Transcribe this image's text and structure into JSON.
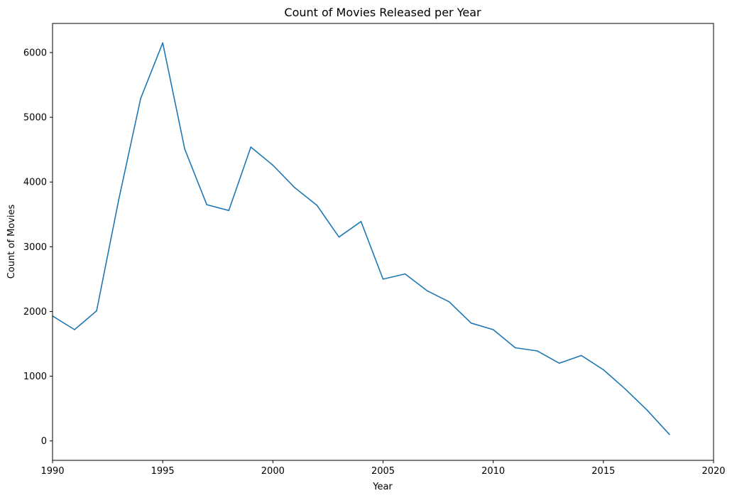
{
  "chart_data": {
    "type": "line",
    "title": "Count of Movies Released per Year",
    "xlabel": "Year",
    "ylabel": "Count of Movies",
    "xlim": [
      1990,
      2020
    ],
    "ylim": [
      -300,
      6450
    ],
    "xticks": [
      1990,
      1995,
      2000,
      2005,
      2010,
      2015,
      2020
    ],
    "yticks": [
      0,
      1000,
      2000,
      3000,
      4000,
      5000,
      6000
    ],
    "grid": false,
    "legend": "none",
    "series": [
      {
        "color": "#1f77b4",
        "x": [
          1990,
          1991,
          1992,
          1993,
          1994,
          1995,
          1996,
          1997,
          1998,
          1999,
          2000,
          2001,
          2002,
          2003,
          2004,
          2005,
          2006,
          2007,
          2008,
          2009,
          2010,
          2011,
          2012,
          2013,
          2014,
          2015,
          2016,
          2017,
          2018
        ],
        "values": [
          1930,
          1720,
          2010,
          3720,
          5290,
          6150,
          4510,
          3650,
          3560,
          4540,
          4260,
          3910,
          3640,
          3150,
          3390,
          2500,
          2580,
          2320,
          2150,
          1820,
          1720,
          1440,
          1390,
          1200,
          1320,
          1100,
          800,
          470,
          100
        ]
      }
    ]
  }
}
